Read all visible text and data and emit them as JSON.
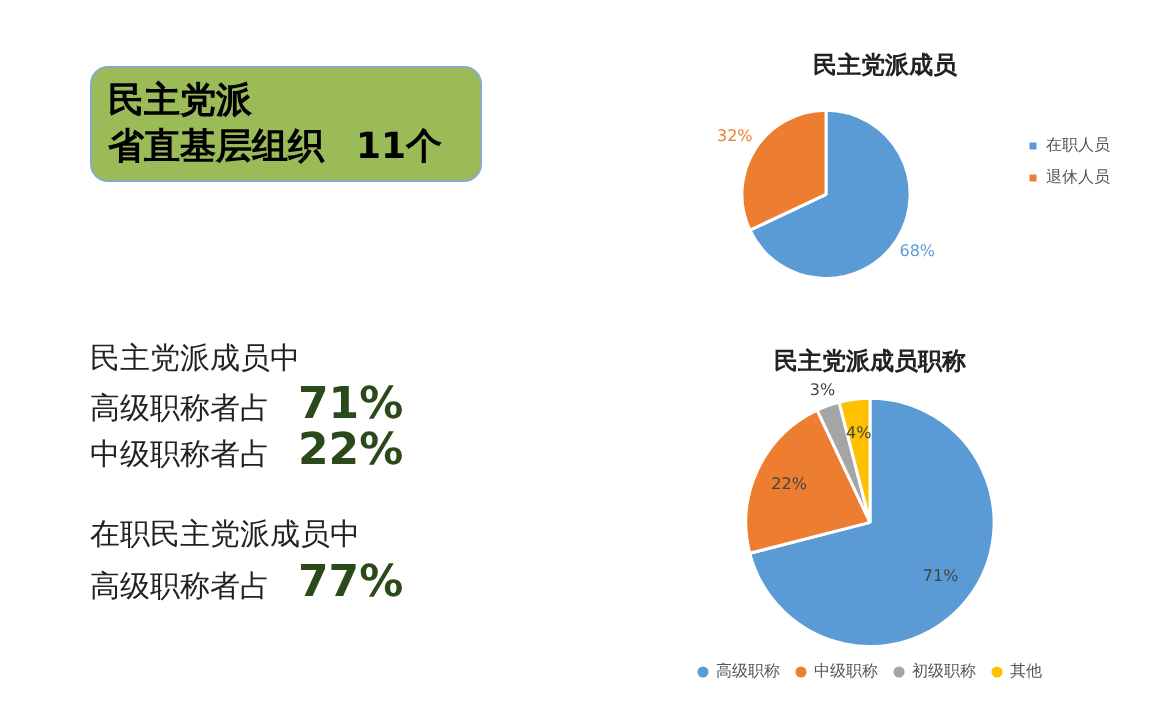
{
  "chart_data": [
    {
      "type": "other",
      "annotations": [
        "民主党派",
        "省直基层组织",
        "11个",
        "民主党派成员中",
        "高级职称者占",
        "71%",
        "中级职称者占",
        "22%",
        "在职民主党派成员中",
        "高级职称者占",
        "77%"
      ]
    },
    {
      "type": "pie",
      "title": "民主党派成员",
      "categories": [
        "在职人员",
        "退休人员"
      ],
      "values": [
        68,
        32
      ],
      "colors": [
        "#5b9bd5",
        "#ed7d31"
      ],
      "value_labels": [
        "68%",
        "32%"
      ],
      "legend": "right"
    },
    {
      "type": "pie",
      "title": "民主党派成员职称",
      "categories": [
        "高级职称",
        "中级职称",
        "初级职称",
        "其他"
      ],
      "values": [
        71,
        22,
        3,
        4
      ],
      "colors": [
        "#5b9bd5",
        "#ed7d31",
        "#a5a5a5",
        "#ffc000"
      ],
      "value_labels": [
        "71%",
        "22%",
        "3%",
        "4%"
      ],
      "legend": "bottom"
    }
  ]
}
